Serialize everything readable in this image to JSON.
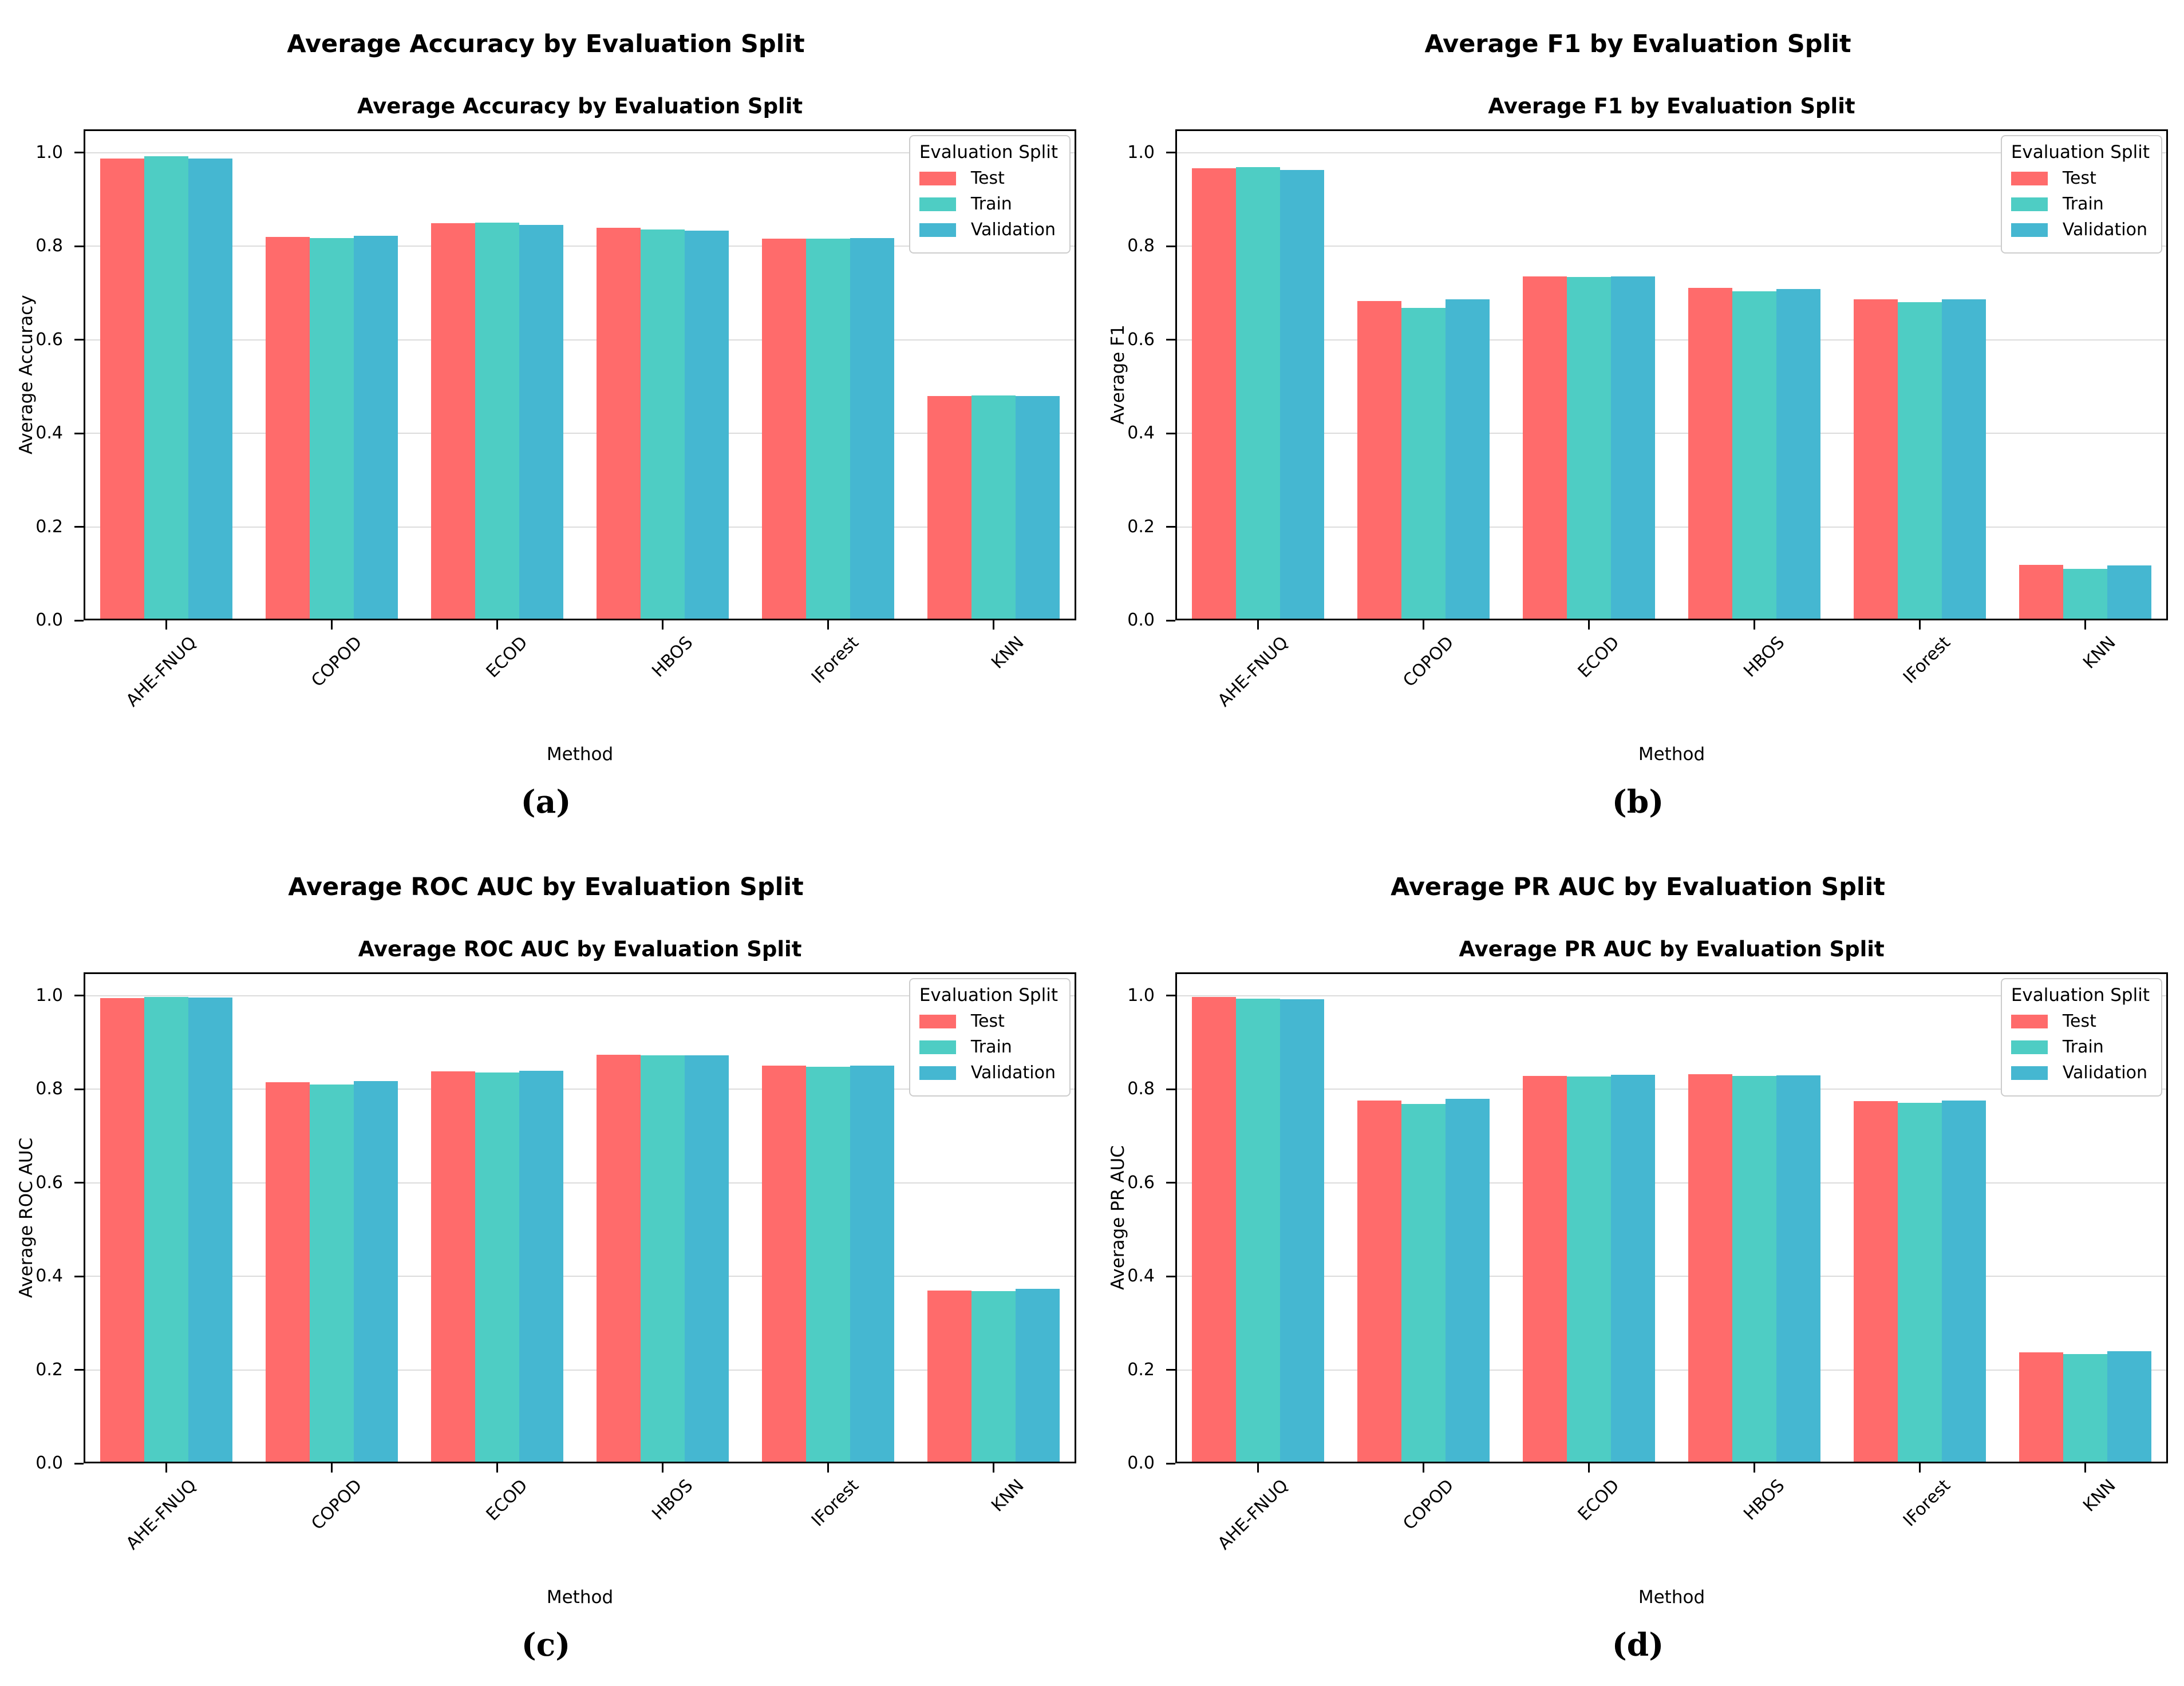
{
  "figure": {
    "layout": "2x2 grid of grouped bar charts",
    "palette": {
      "Test": "#FF6B6B",
      "Train": "#4ECDC4",
      "Validation": "#45B7D1"
    }
  },
  "chart_data": [
    {
      "type": "bar",
      "caption": "(a)",
      "outer_title": "Average Accuracy by Evaluation Split",
      "title": "Average Accuracy by Evaluation Split",
      "xlabel": "Method",
      "ylabel": "Average Accuracy",
      "ylim": [
        0,
        1.05
      ],
      "yticks": [
        0.0,
        0.2,
        0.4,
        0.6,
        0.8,
        1.0
      ],
      "ytick_labels": [
        "0.0",
        "0.2",
        "0.4",
        "0.6",
        "0.8",
        "1.0"
      ],
      "grid": true,
      "legend": {
        "title": "Evaluation Split",
        "position": "upper right"
      },
      "categories": [
        "AHE-FNUQ",
        "COPOD",
        "ECOD",
        "HBOS",
        "IForest",
        "KNN"
      ],
      "series": [
        {
          "name": "Test",
          "color": "#FF6B6B",
          "values": [
            0.988,
            0.82,
            0.849,
            0.839,
            0.816,
            0.48
          ]
        },
        {
          "name": "Train",
          "color": "#4ECDC4",
          "values": [
            0.993,
            0.818,
            0.85,
            0.836,
            0.816,
            0.481
          ]
        },
        {
          "name": "Validation",
          "color": "#45B7D1",
          "values": [
            0.987,
            0.823,
            0.846,
            0.834,
            0.817,
            0.48
          ]
        }
      ]
    },
    {
      "type": "bar",
      "caption": "(b)",
      "outer_title": "Average F1 by Evaluation Split",
      "title": "Average F1 by Evaluation Split",
      "xlabel": "Method",
      "ylabel": "Average F1",
      "ylim": [
        0,
        1.05
      ],
      "yticks": [
        0.0,
        0.2,
        0.4,
        0.6,
        0.8,
        1.0
      ],
      "ytick_labels": [
        "0.0",
        "0.2",
        "0.4",
        "0.6",
        "0.8",
        "1.0"
      ],
      "grid": true,
      "legend": {
        "title": "Evaluation Split",
        "position": "upper right"
      },
      "categories": [
        "AHE-FNUQ",
        "COPOD",
        "ECOD",
        "HBOS",
        "IForest",
        "KNN"
      ],
      "series": [
        {
          "name": "Test",
          "color": "#FF6B6B",
          "values": [
            0.967,
            0.683,
            0.736,
            0.711,
            0.686,
            0.119
          ]
        },
        {
          "name": "Train",
          "color": "#4ECDC4",
          "values": [
            0.969,
            0.668,
            0.734,
            0.704,
            0.68,
            0.11
          ]
        },
        {
          "name": "Validation",
          "color": "#45B7D1",
          "values": [
            0.963,
            0.687,
            0.736,
            0.708,
            0.686,
            0.118
          ]
        }
      ]
    },
    {
      "type": "bar",
      "caption": "(c)",
      "outer_title": "Average ROC AUC by Evaluation Split",
      "title": "Average ROC AUC by Evaluation Split",
      "xlabel": "Method",
      "ylabel": "Average ROC AUC",
      "ylim": [
        0,
        1.05
      ],
      "yticks": [
        0.0,
        0.2,
        0.4,
        0.6,
        0.8,
        1.0
      ],
      "ytick_labels": [
        "0.0",
        "0.2",
        "0.4",
        "0.6",
        "0.8",
        "1.0"
      ],
      "grid": true,
      "legend": {
        "title": "Evaluation Split",
        "position": "upper right"
      },
      "categories": [
        "AHE-FNUQ",
        "COPOD",
        "ECOD",
        "HBOS",
        "IForest",
        "KNN"
      ],
      "series": [
        {
          "name": "Test",
          "color": "#FF6B6B",
          "values": [
            0.995,
            0.815,
            0.838,
            0.874,
            0.85,
            0.369
          ]
        },
        {
          "name": "Train",
          "color": "#4ECDC4",
          "values": [
            0.998,
            0.81,
            0.836,
            0.873,
            0.848,
            0.368
          ]
        },
        {
          "name": "Validation",
          "color": "#45B7D1",
          "values": [
            0.996,
            0.817,
            0.839,
            0.873,
            0.851,
            0.373
          ]
        }
      ]
    },
    {
      "type": "bar",
      "caption": "(d)",
      "outer_title": "Average PR AUC by Evaluation Split",
      "title": "Average PR AUC by Evaluation Split",
      "xlabel": "Method",
      "ylabel": "Average PR AUC",
      "ylim": [
        0,
        1.05
      ],
      "yticks": [
        0.0,
        0.2,
        0.4,
        0.6,
        0.8,
        1.0
      ],
      "ytick_labels": [
        "0.0",
        "0.2",
        "0.4",
        "0.6",
        "0.8",
        "1.0"
      ],
      "grid": true,
      "legend": {
        "title": "Evaluation Split",
        "position": "upper right"
      },
      "categories": [
        "AHE-FNUQ",
        "COPOD",
        "ECOD",
        "HBOS",
        "IForest",
        "KNN"
      ],
      "series": [
        {
          "name": "Test",
          "color": "#FF6B6B",
          "values": [
            0.997,
            0.776,
            0.829,
            0.832,
            0.775,
            0.237
          ]
        },
        {
          "name": "Train",
          "color": "#4ECDC4",
          "values": [
            0.994,
            0.768,
            0.827,
            0.828,
            0.771,
            0.234
          ]
        },
        {
          "name": "Validation",
          "color": "#45B7D1",
          "values": [
            0.992,
            0.779,
            0.831,
            0.83,
            0.776,
            0.24
          ]
        }
      ]
    }
  ]
}
